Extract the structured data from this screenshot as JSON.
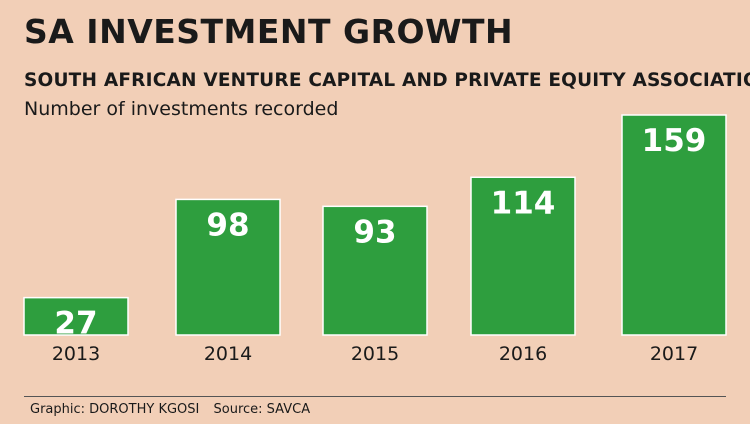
{
  "header": {
    "title": "SA INVESTMENT GROWTH",
    "subtitle": "SOUTH AFRICAN VENTURE CAPITAL AND PRIVATE EQUITY ASSOCIATION"
  },
  "footer": {
    "graphic": "Graphic: DOROTHY KGOSI",
    "source": "Source: SAVCA"
  },
  "colors": {
    "bar": "#2e9e3e",
    "bar_border": "#ffffff",
    "value_label": "#ffffff",
    "background": "#f2cfb7"
  },
  "chart_data": {
    "type": "bar",
    "title": "SA INVESTMENT GROWTH",
    "subtitle": "SOUTH AFRICAN VENTURE CAPITAL AND PRIVATE EQUITY ASSOCIATION",
    "ylabel": "Number of investments recorded",
    "xlabel": "",
    "categories": [
      "2013",
      "2014",
      "2015",
      "2016",
      "2017"
    ],
    "values": [
      27,
      98,
      93,
      114,
      159
    ],
    "data_labels": [
      "27",
      "98",
      "93",
      "114",
      "159"
    ],
    "ylim": [
      0,
      159
    ],
    "grid": false,
    "legend": "none"
  }
}
